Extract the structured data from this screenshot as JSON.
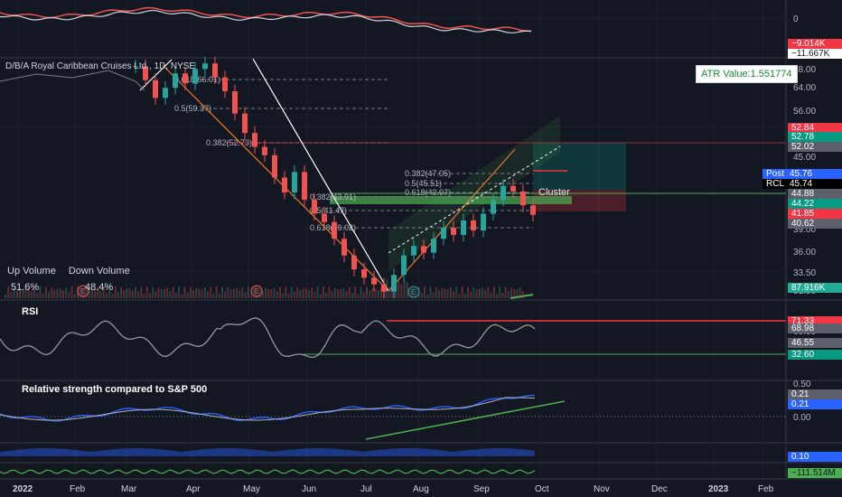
{
  "header": {
    "symbol_title": "D/B/A Royal Caribbean Cruises Ltd., 1D, NYSE",
    "atr_label": "ATR Value:1.551774",
    "cluster_label": "Cluster"
  },
  "volume_box": {
    "up_label": "Up Volume",
    "down_label": "Down Volume",
    "up_value": "51.6%",
    "down_value": "48.4%"
  },
  "fib_labels": [
    "0.618(66.01)",
    "0.5(59.37)",
    "0.382(52.73)",
    "0.382(47.05)",
    "0.5(45.51)",
    "0.618(43.97)",
    "0.382(43.91)",
    "0.5(41.47)",
    "0.618(39.02)"
  ],
  "panes": {
    "rsi_title": "RSI",
    "rs_title": "Relative strength compared to S&P 500"
  },
  "earnings_marker": "E",
  "colors": {
    "bg": "#131722",
    "up": "#26a69a",
    "down": "#ef5350",
    "green": "#4caf50",
    "red": "#f23645",
    "orange": "#e8762c",
    "blue": "#2962ff"
  },
  "chart_data": [
    {
      "type": "line",
      "pane": "top-indicator",
      "y_tick_labels": [
        "0"
      ],
      "badges": [
        {
          "text": "−9.014K",
          "color": "#f23645"
        },
        {
          "text": "−11.667K",
          "color": "#ffffff"
        }
      ]
    },
    {
      "type": "candlestick",
      "pane": "price",
      "title": "D/B/A Royal Caribbean Cruises Ltd., 1D, NYSE",
      "y_tick_labels": [
        "68.00",
        "64.00",
        "56.00",
        "50.00",
        "45.00",
        "39.00",
        "36.00",
        "33.50",
        "31.50"
      ],
      "price_badges": [
        {
          "text": "52.84",
          "color": "#f23645"
        },
        {
          "text": "52.78",
          "color": "#089981"
        },
        {
          "text": "52.02",
          "color": "#5d606b"
        },
        {
          "text": "Post",
          "color": "#2962ff"
        },
        {
          "text": "45.76",
          "color": "#2962ff"
        },
        {
          "text": "RCL",
          "color": "#000000"
        },
        {
          "text": "45.74",
          "color": "#000000"
        },
        {
          "text": "44.88",
          "color": "#5d606b"
        },
        {
          "text": "44.22",
          "color": "#089981"
        },
        {
          "text": "41.85",
          "color": "#f23645"
        },
        {
          "text": "40.62",
          "color": "#5d606b"
        },
        {
          "text": "87.916K",
          "color": "#22ab94"
        }
      ],
      "close_series": [
        72.5,
        70.0,
        66.8,
        68.6,
        71.2,
        69.4,
        72.0,
        73.0,
        70.5,
        68.0,
        64.0,
        60.5,
        58.0,
        56.5,
        52.5,
        49.8,
        53.5,
        48.5,
        46.0,
        44.5,
        41.5,
        38.5,
        36.0,
        34.5,
        33.3,
        32.0,
        35.0,
        38.5,
        40.2,
        39.0,
        41.5,
        43.5,
        42.2,
        44.8,
        43.0,
        46.0,
        48.5,
        51.0,
        50.0,
        47.5,
        45.8
      ]
    },
    {
      "type": "line",
      "pane": "rsi",
      "title": "RSI",
      "y_tick_labels": [
        "60.00"
      ],
      "levels": [
        71.33,
        32.6
      ],
      "badges": [
        {
          "text": "71.33",
          "color": "#f23645"
        },
        {
          "text": "68.98",
          "color": "#5d606b"
        },
        {
          "text": "46.55",
          "color": "#5d606b"
        },
        {
          "text": "32.60",
          "color": "#089981"
        }
      ]
    },
    {
      "type": "line",
      "pane": "relative-strength",
      "title": "Relative strength compared to S&P 500",
      "y_tick_labels": [
        "0.50",
        "0.00"
      ],
      "badges": [
        {
          "text": "0.21",
          "color": "#5d606b"
        },
        {
          "text": "0.21",
          "color": "#2962ff"
        }
      ]
    },
    {
      "type": "area",
      "pane": "bottom-indicator",
      "badges": [
        {
          "text": "0.10",
          "color": "#2962ff"
        },
        {
          "text": "−111.514M",
          "color": "#4caf50"
        }
      ]
    }
  ],
  "x_axis": {
    "labels": [
      "2022",
      "Feb",
      "Mar",
      "Apr",
      "May",
      "Jun",
      "Jul",
      "Aug",
      "Sep",
      "Oct",
      "Nov",
      "Dec",
      "2023",
      "Feb"
    ]
  }
}
